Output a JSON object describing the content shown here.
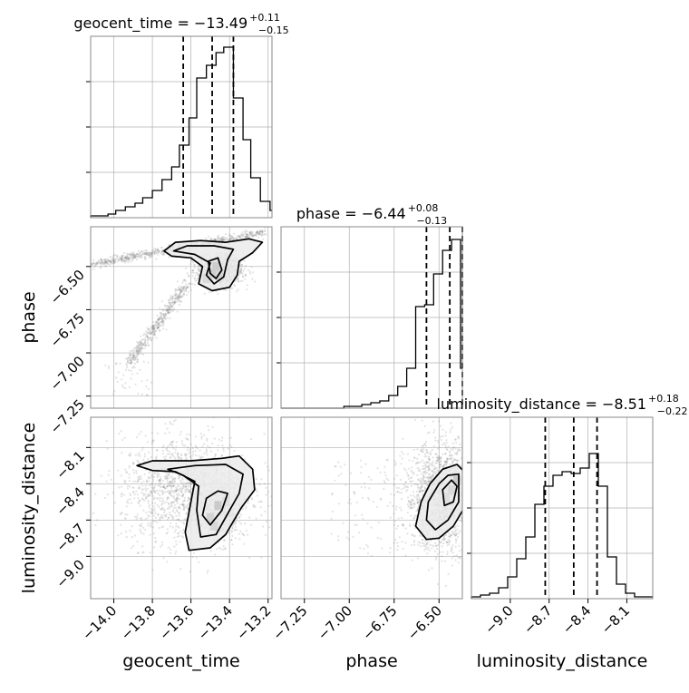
{
  "chart_data": [
    {
      "type": "histogram",
      "panel": "1d-geocent_time",
      "title_param": "geocent_time",
      "title_value": "−13.49",
      "title_plus": "+0.11",
      "title_minus": "−0.15",
      "xlim": [
        -14.12,
        -13.18
      ],
      "bins_x": [
        -14.12,
        -14.08,
        -14.03,
        -13.99,
        -13.94,
        -13.89,
        -13.85,
        -13.8,
        -13.75,
        -13.7,
        -13.66,
        -13.61,
        -13.57,
        -13.52,
        -13.47,
        -13.43,
        -13.38,
        -13.33,
        -13.29,
        -13.24,
        -13.19
      ],
      "bin_values": [
        0.01,
        0.01,
        0.02,
        0.04,
        0.06,
        0.08,
        0.11,
        0.15,
        0.21,
        0.28,
        0.4,
        0.55,
        0.77,
        0.84,
        0.91,
        0.94,
        0.66,
        0.43,
        0.22,
        0.09,
        0.04
      ],
      "quantiles": [
        -13.64,
        -13.49,
        -13.38
      ],
      "grid": true
    },
    {
      "type": "histogram",
      "panel": "1d-phase",
      "title_param": "phase",
      "title_value": "−6.44",
      "title_plus": "+0.08",
      "title_minus": "−0.13",
      "xlim": [
        -7.38,
        -6.37
      ],
      "bins_x": [
        -7.38,
        -7.33,
        -7.28,
        -7.23,
        -7.18,
        -7.13,
        -7.08,
        -7.03,
        -6.98,
        -6.93,
        -6.88,
        -6.83,
        -6.78,
        -6.73,
        -6.68,
        -6.63,
        -6.58,
        -6.53,
        -6.48,
        -6.43,
        -6.38
      ],
      "bin_values": [
        0.0,
        0.0,
        0.0,
        0.0,
        0.0,
        0.0,
        0.0,
        0.01,
        0.01,
        0.02,
        0.03,
        0.04,
        0.07,
        0.12,
        0.22,
        0.56,
        0.57,
        0.74,
        0.87,
        0.93,
        0.22
      ],
      "quantiles": [
        -6.57,
        -6.44,
        -6.37
      ],
      "grid": true
    },
    {
      "type": "histogram",
      "panel": "1d-luminosity_distance",
      "title_param": "luminosity_distance",
      "title_value": "−8.51",
      "title_plus": "+0.18",
      "title_minus": "−0.22",
      "xlim": [
        -9.3,
        -7.9
      ],
      "bins_x": [
        -9.3,
        -9.23,
        -9.16,
        -9.09,
        -9.02,
        -8.95,
        -8.88,
        -8.81,
        -8.74,
        -8.67,
        -8.6,
        -8.53,
        -8.46,
        -8.39,
        -8.32,
        -8.25,
        -8.18,
        -8.11,
        -8.04,
        -7.97
      ],
      "bin_values": [
        0.01,
        0.02,
        0.03,
        0.06,
        0.12,
        0.22,
        0.34,
        0.52,
        0.62,
        0.68,
        0.7,
        0.69,
        0.72,
        0.8,
        0.62,
        0.23,
        0.08,
        0.03,
        0.01,
        0.01
      ],
      "quantiles": [
        -8.73,
        -8.51,
        -8.33
      ],
      "grid": true
    },
    {
      "type": "scatter-density",
      "panel": "2d-geocent_time-phase",
      "xlim": [
        -14.12,
        -13.18
      ],
      "ylim": [
        -7.32,
        -6.27
      ],
      "levels": 3,
      "grid": true
    },
    {
      "type": "scatter-density",
      "panel": "2d-geocent_time-luminosity_distance",
      "xlim": [
        -14.12,
        -13.18
      ],
      "ylim": [
        -9.35,
        -7.85
      ],
      "levels": 3,
      "grid": true
    },
    {
      "type": "scatter-density",
      "panel": "2d-phase-luminosity_distance",
      "xlim": [
        -7.38,
        -6.37
      ],
      "ylim": [
        -9.35,
        -7.85
      ],
      "levels": 3,
      "grid": true
    }
  ],
  "axes": {
    "x_labels": [
      "geocent_time",
      "phase",
      "luminosity_distance"
    ],
    "y_labels": [
      "phase",
      "luminosity_distance"
    ],
    "geocent_time_ticks": [
      "−14.0",
      "−13.8",
      "−13.6",
      "−13.4",
      "−13.2"
    ],
    "geocent_time_values": [
      -14.0,
      -13.8,
      -13.6,
      -13.4,
      -13.2
    ],
    "phase_ticks": [
      "−7.25",
      "−7.00",
      "−6.75",
      "−6.50"
    ],
    "phase_values": [
      -7.25,
      -7.0,
      -6.75,
      -6.5
    ],
    "ld_ticks": [
      "−9.0",
      "−8.7",
      "−8.4",
      "−8.1"
    ],
    "ld_values": [
      -9.0,
      -8.7,
      -8.4,
      -8.1
    ],
    "phase_y_ticks": [
      "−6.50",
      "−6.75",
      "−7.00",
      "−7.25"
    ],
    "phase_y_values": [
      -6.5,
      -6.75,
      -7.0,
      -7.25
    ],
    "ld_y_ticks": [
      "−8.1",
      "−8.4",
      "−8.7",
      "−9.0"
    ],
    "ld_y_values": [
      -8.1,
      -8.4,
      -8.7,
      -9.0
    ]
  },
  "style": {
    "line_color": "#000000",
    "grid_color": "#b0b0b0",
    "frame_color": "#888888",
    "point_color": "#808080"
  }
}
